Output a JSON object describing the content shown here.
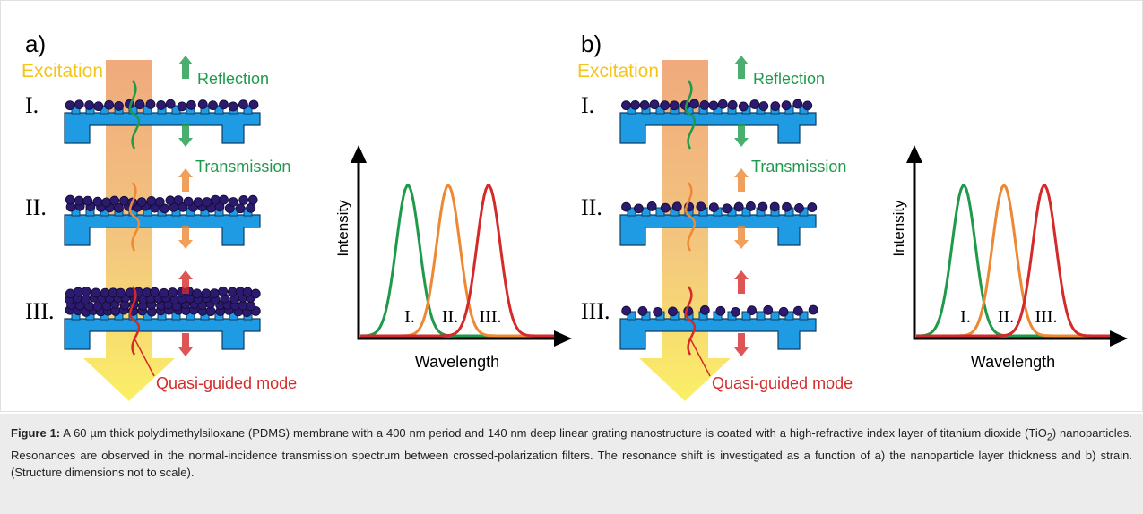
{
  "panels": [
    {
      "label": "a)",
      "excitation": "Excitation",
      "reflection": "Reflection",
      "transmission": "Transmission",
      "rows": [
        "I.",
        "II.",
        "III."
      ],
      "mode": "Quasi-guided mode",
      "plot": {
        "y_label": "Intensity",
        "x_label": "Wavelength",
        "peaks": [
          "I.",
          "II.",
          "III."
        ]
      }
    },
    {
      "label": "b)",
      "excitation": "Excitation",
      "reflection": "Reflection",
      "transmission": "Transmission",
      "rows": [
        "I.",
        "II.",
        "III."
      ],
      "mode": "Quasi-guided mode",
      "plot": {
        "y_label": "Intensity",
        "x_label": "Wavelength",
        "peaks": [
          "I.",
          "II.",
          "III."
        ]
      }
    }
  ],
  "caption": {
    "label": "Figure 1:",
    "text_before": " A 60 µm thick polydimethylsiloxane (PDMS) membrane with a 400 nm period and 140 nm deep linear grating nanostructure is coated with a high-refractive index layer of titanium dioxide (TiO",
    "subscript": "2",
    "text_after": ") nanoparticles. Resonances are observed in the normal-incidence transmission spectrum between crossed-polarization filters. The resonance shift is investigated as a function of a) the nanoparticle layer thickness and b) strain. (Structure dimensions not to scale)."
  }
}
